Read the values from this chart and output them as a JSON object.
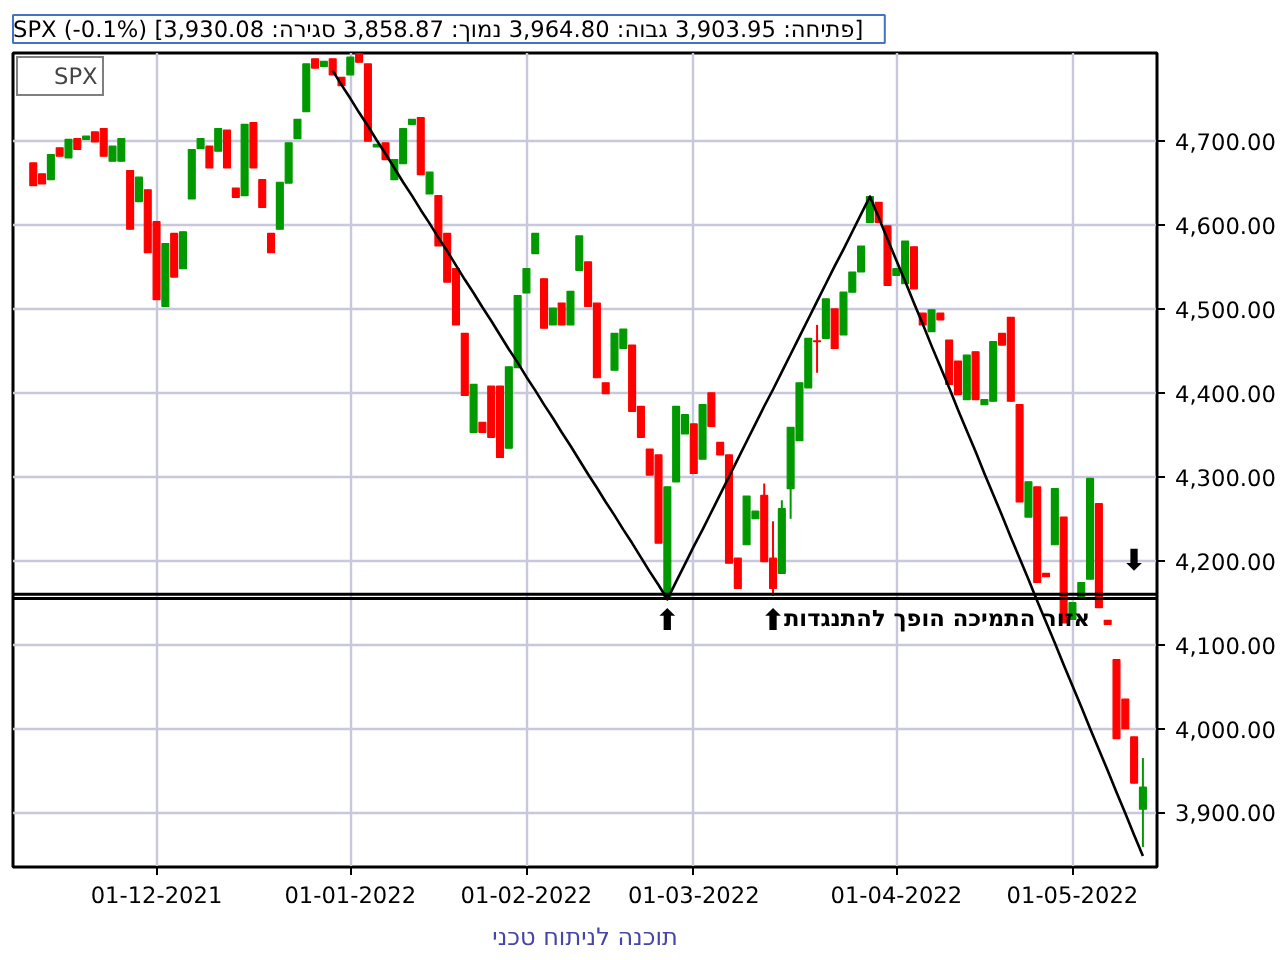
{
  "chart_data": {
    "type": "candlestick",
    "subtitle": "SPX (-0.1%) [פתיחה: 3,903.95  גבוה: 3,964.80  נמוך: 3,858.87  סגירה: 3,930.08]",
    "categories": [
      null,
      null,
      null,
      null,
      null,
      null,
      null,
      null,
      null,
      null,
      null,
      null,
      null,
      null,
      "01-12-2021",
      null,
      null,
      null,
      null,
      null,
      null,
      null,
      null,
      null,
      null,
      null,
      null,
      null,
      null,
      null,
      null,
      null,
      null,
      null,
      null,
      null,
      "01-01-2022",
      null,
      null,
      null,
      null,
      null,
      null,
      null,
      null,
      null,
      null,
      null,
      null,
      null,
      null,
      null,
      null,
      null,
      null,
      null,
      "01-02-2022",
      null,
      null,
      null,
      null,
      null,
      null,
      null,
      null,
      null,
      null,
      null,
      null,
      null,
      null,
      null,
      null,
      null,
      null,
      "01-03-2022",
      null,
      null,
      null,
      null,
      null,
      null,
      null,
      null,
      null,
      null,
      null,
      null,
      null,
      null,
      null,
      null,
      null,
      null,
      null,
      null,
      null,
      null,
      "01-04-2022",
      null,
      null,
      null,
      null,
      null,
      null,
      null,
      null,
      null,
      null,
      null,
      null,
      null,
      null,
      null,
      null,
      null,
      null,
      null,
      "01-05-2022",
      null,
      null,
      null,
      null,
      null,
      null,
      null,
      null
    ],
    "series": [
      {
        "name": "SPX",
        "color": "#000000",
        "ohlc": [
          [
            4674,
            4674,
            4647,
            4647
          ],
          [
            4661,
            4661,
            4649,
            4649
          ],
          [
            4654,
            4684,
            4654,
            4684
          ],
          [
            4692,
            4692,
            4682,
            4682
          ],
          [
            4680,
            4702,
            4680,
            4702
          ],
          [
            4703,
            4703,
            4690,
            4690
          ],
          [
            4702,
            4706,
            4702,
            4706
          ],
          [
            4711,
            4711,
            4699,
            4699
          ],
          [
            4715,
            4715,
            4682,
            4682
          ],
          [
            4676,
            4694,
            4676,
            4694
          ],
          [
            4676,
            4703,
            4676,
            4703
          ],
          [
            4665,
            4665,
            4595,
            4595
          ],
          [
            4628,
            4657,
            4628,
            4657
          ],
          [
            4642,
            4642,
            4567,
            4567
          ],
          [
            4604,
            4604,
            4511,
            4511
          ],
          [
            4503,
            4578,
            4503,
            4578
          ],
          [
            4590,
            4590,
            4538,
            4538
          ],
          [
            4548,
            4592,
            4548,
            4592
          ],
          [
            4631,
            4690,
            4631,
            4690
          ],
          [
            4691,
            4703,
            4691,
            4703
          ],
          [
            4694,
            4694,
            4668,
            4668
          ],
          [
            4688,
            4715,
            4688,
            4715
          ],
          [
            4713,
            4713,
            4668,
            4668
          ],
          [
            4644,
            4644,
            4633,
            4633
          ],
          [
            4635,
            4720,
            4635,
            4720
          ],
          [
            4722,
            4722,
            4668,
            4668
          ],
          [
            4654,
            4654,
            4621,
            4621
          ],
          [
            4590,
            4590,
            4567,
            4567
          ],
          [
            4595,
            4651,
            4595,
            4651
          ],
          [
            4650,
            4698,
            4650,
            4698
          ],
          [
            4703,
            4726,
            4703,
            4726
          ],
          [
            4735,
            4792,
            4735,
            4792
          ],
          [
            4798,
            4798,
            4787,
            4787
          ],
          [
            4789,
            4795,
            4789,
            4795
          ],
          [
            4798,
            4798,
            4779,
            4779
          ],
          [
            4776,
            4776,
            4766,
            4766
          ],
          [
            4779,
            4800,
            4779,
            4800
          ],
          [
            4804,
            4804,
            4794,
            4794
          ],
          [
            4792,
            4792,
            4700,
            4700
          ],
          [
            4693,
            4696,
            4693,
            4696
          ],
          [
            4698,
            4698,
            4678,
            4678
          ],
          [
            4654,
            4678,
            4654,
            4678
          ],
          [
            4673,
            4715,
            4673,
            4715
          ],
          [
            4720,
            4726,
            4720,
            4726
          ],
          [
            4728,
            4728,
            4660,
            4660
          ],
          [
            4637,
            4663,
            4637,
            4663
          ],
          [
            4635,
            4635,
            4575,
            4575
          ],
          [
            4590,
            4590,
            4532,
            4532
          ],
          [
            4548,
            4548,
            4481,
            4481
          ],
          [
            4471,
            4471,
            4397,
            4397
          ],
          [
            4353,
            4410,
            4353,
            4410
          ],
          [
            4365,
            4365,
            4353,
            4353
          ],
          [
            4408,
            4408,
            4347,
            4347
          ],
          [
            4408,
            4408,
            4323,
            4323
          ],
          [
            4334,
            4431,
            4334,
            4431
          ],
          [
            4430,
            4516,
            4430,
            4516
          ],
          [
            4519,
            4548,
            4519,
            4548
          ],
          [
            4566,
            4590,
            4566,
            4590
          ],
          [
            4536,
            4536,
            4477,
            4477
          ],
          [
            4481,
            4501,
            4481,
            4501
          ],
          [
            4507,
            4507,
            4481,
            4481
          ],
          [
            4481,
            4521,
            4481,
            4521
          ],
          [
            4546,
            4587,
            4546,
            4587
          ],
          [
            4556,
            4556,
            4503,
            4503
          ],
          [
            4507,
            4507,
            4418,
            4418
          ],
          [
            4412,
            4412,
            4399,
            4399
          ],
          [
            4427,
            4471,
            4427,
            4471
          ],
          [
            4453,
            4476,
            4453,
            4476
          ],
          [
            4457,
            4457,
            4378,
            4378
          ],
          [
            4384,
            4384,
            4347,
            4347
          ],
          [
            4333,
            4333,
            4302,
            4302
          ],
          [
            4326,
            4326,
            4221,
            4221
          ],
          [
            4154,
            4288,
            4154,
            4288
          ],
          [
            4294,
            4384,
            4294,
            4384
          ],
          [
            4351,
            4374,
            4351,
            4374
          ],
          [
            4363,
            4363,
            4304,
            4304
          ],
          [
            4321,
            4386,
            4321,
            4386
          ],
          [
            4400,
            4400,
            4360,
            4360
          ],
          [
            4341,
            4341,
            4326,
            4326
          ],
          [
            4326,
            4326,
            4197,
            4197
          ],
          [
            4203,
            4203,
            4167,
            4167
          ],
          [
            4219,
            4277,
            4219,
            4277
          ],
          [
            4250,
            4259,
            4250,
            4259
          ],
          [
            4278,
            4292,
            4199,
            4199
          ],
          [
            4203,
            4247,
            4158,
            4167
          ],
          [
            4185,
            4272,
            4185,
            4262
          ],
          [
            4286,
            4359,
            4250,
            4359
          ],
          [
            4343,
            4412,
            4343,
            4412
          ],
          [
            4406,
            4465,
            4406,
            4465
          ],
          [
            4462,
            4481,
            4424,
            4461
          ],
          [
            4465,
            4512,
            4465,
            4512
          ],
          [
            4500,
            4500,
            4453,
            4453
          ],
          [
            4469,
            4520,
            4469,
            4520
          ],
          [
            4520,
            4544,
            4520,
            4544
          ],
          [
            4544,
            4575,
            4544,
            4575
          ],
          [
            4603,
            4634,
            4603,
            4634
          ],
          [
            4627,
            4627,
            4603,
            4603
          ],
          [
            4599,
            4599,
            4528,
            4528
          ],
          [
            4540,
            4548,
            4540,
            4548
          ],
          [
            4530,
            4581,
            4530,
            4581
          ],
          [
            4574,
            4574,
            4524,
            4524
          ],
          [
            4495,
            4495,
            4481,
            4481
          ],
          [
            4473,
            4499,
            4473,
            4499
          ],
          [
            4495,
            4495,
            4487,
            4487
          ],
          [
            4463,
            4463,
            4410,
            4410
          ],
          [
            4438,
            4438,
            4398,
            4398
          ],
          [
            4392,
            4445,
            4392,
            4445
          ],
          [
            4449,
            4449,
            4392,
            4392
          ],
          [
            4386,
            4392,
            4386,
            4392
          ],
          [
            4390,
            4461,
            4390,
            4461
          ],
          [
            4471,
            4471,
            4457,
            4457
          ],
          [
            4490,
            4490,
            4390,
            4390
          ],
          [
            4386,
            4386,
            4270,
            4270
          ],
          [
            4252,
            4294,
            4252,
            4294
          ],
          [
            4288,
            4288,
            4174,
            4174
          ],
          [
            4185,
            4185,
            4181,
            4181
          ],
          [
            4219,
            4286,
            4219,
            4286
          ],
          [
            4252,
            4252,
            4126,
            4126
          ],
          [
            4130,
            4150,
            4130,
            4150
          ],
          [
            4155,
            4174,
            4155,
            4174
          ],
          [
            4178,
            4298,
            4178,
            4298
          ],
          [
            4268,
            4268,
            4144,
            4144
          ],
          [
            4129,
            4129,
            4124,
            4124
          ],
          [
            4082,
            4082,
            3988,
            3988
          ],
          [
            4035,
            4035,
            4000,
            4000
          ],
          [
            3990,
            3990,
            3935,
            3935
          ],
          [
            3903.95,
            3964.8,
            3858.87,
            3930.08
          ]
        ],
        "colors": [
          "#ff0000",
          "#ff0000",
          "#009900",
          "#ff0000",
          "#009900",
          "#ff0000",
          "#009900",
          "#ff0000",
          "#ff0000",
          "#009900",
          "#009900",
          "#ff0000",
          "#009900",
          "#ff0000",
          "#ff0000",
          "#009900",
          "#ff0000",
          "#009900",
          "#009900",
          "#009900",
          "#ff0000",
          "#009900",
          "#ff0000",
          "#ff0000",
          "#009900",
          "#ff0000",
          "#ff0000",
          "#ff0000",
          "#009900",
          "#009900",
          "#009900",
          "#009900",
          "#ff0000",
          "#009900",
          "#ff0000",
          "#ff0000",
          "#009900",
          "#ff0000",
          "#ff0000",
          "#009900",
          "#ff0000",
          "#009900",
          "#009900",
          "#009900",
          "#ff0000",
          "#009900",
          "#ff0000",
          "#ff0000",
          "#ff0000",
          "#ff0000",
          "#009900",
          "#ff0000",
          "#ff0000",
          "#ff0000",
          "#009900",
          "#009900",
          "#009900",
          "#009900",
          "#ff0000",
          "#009900",
          "#ff0000",
          "#009900",
          "#009900",
          "#ff0000",
          "#ff0000",
          "#ff0000",
          "#009900",
          "#009900",
          "#ff0000",
          "#ff0000",
          "#ff0000",
          "#ff0000",
          "#009900",
          "#009900",
          "#009900",
          "#ff0000",
          "#009900",
          "#ff0000",
          "#ff0000",
          "#ff0000",
          "#ff0000",
          "#009900",
          "#009900",
          "#ff0000",
          "#ff0000",
          "#009900",
          "#009900",
          "#009900",
          "#009900",
          "#ff0000",
          "#009900",
          "#ff0000",
          "#009900",
          "#009900",
          "#009900",
          "#009900",
          "#ff0000",
          "#ff0000",
          "#009900",
          "#009900",
          "#ff0000",
          "#ff0000",
          "#009900",
          "#ff0000",
          "#ff0000",
          "#ff0000",
          "#009900",
          "#ff0000",
          "#009900",
          "#009900",
          "#ff0000",
          "#ff0000",
          "#ff0000",
          "#009900",
          "#ff0000",
          "#ff0000",
          "#009900",
          "#ff0000",
          "#009900",
          "#009900",
          "#009900",
          "#ff0000",
          "#ff0000",
          "#ff0000",
          "#ff0000",
          "#ff0000",
          "#009900"
        ]
      },
      {
        "type": "line",
        "color": "#000000",
        "values": [
          null,
          null,
          null,
          null,
          null,
          null,
          null,
          null,
          null,
          null,
          null,
          null,
          null,
          null,
          null,
          null,
          null,
          null,
          null,
          null,
          null,
          null,
          null,
          null,
          null,
          null,
          null,
          null,
          null,
          null,
          null,
          null,
          null,
          null,
          4784,
          4767,
          4751,
          4734,
          4718,
          4701,
          4685,
          4668,
          4651,
          4635,
          4618,
          4602,
          4585,
          4569,
          4552,
          4535,
          4519,
          4502,
          4486,
          4469,
          4452,
          4436,
          4419,
          4403,
          4386,
          4370,
          4353,
          4337,
          4320,
          4303,
          4287,
          4270,
          4254,
          4237,
          4221,
          4204,
          4187,
          4171,
          4154,
          4175,
          4196,
          4217,
          4237,
          4258,
          4279,
          4300,
          4321,
          4342,
          4363,
          4384,
          4404,
          4425,
          4446,
          4467,
          4488,
          4509,
          4530,
          4551,
          4571,
          4592,
          4613,
          4634,
          4609,
          4583,
          4558,
          4533,
          4507,
          4482,
          4456,
          4431,
          4406,
          4380,
          4355,
          4330,
          4304,
          4279,
          4254,
          4228,
          4203,
          4178,
          4152,
          4127,
          4102,
          4076,
          4051,
          4026,
          4000,
          3975,
          3950,
          3924,
          3899,
          3873,
          3848
        ]
      }
    ],
    "ylim": [
      3835,
      4805
    ],
    "yticks": [
      {
        "value": 3900,
        "label": "3,900.00"
      },
      {
        "value": 4000,
        "label": "4,000.00"
      },
      {
        "value": 4100,
        "label": "4,100.00"
      },
      {
        "value": 4200,
        "label": "4,200.00"
      },
      {
        "value": 4300,
        "label": "4,300.00"
      },
      {
        "value": 4400,
        "label": "4,400.00"
      },
      {
        "value": 4500,
        "label": "4,500.00"
      },
      {
        "value": 4600,
        "label": "4,600.00"
      },
      {
        "value": 4700,
        "label": "4,700.00"
      }
    ],
    "ref_lines": [
      {
        "axis": "y",
        "value": 4160,
        "color": "#000000"
      },
      {
        "axis": "y",
        "value": 4155,
        "color": "#000000",
        "label": "אזור התמיכה הופך להתנגדות"
      }
    ],
    "annotations": [
      "⬆",
      "⬆",
      "⬇",
      "תוכנה לניתוח טכני"
    ],
    "grid": true,
    "legend": "top left"
  }
}
